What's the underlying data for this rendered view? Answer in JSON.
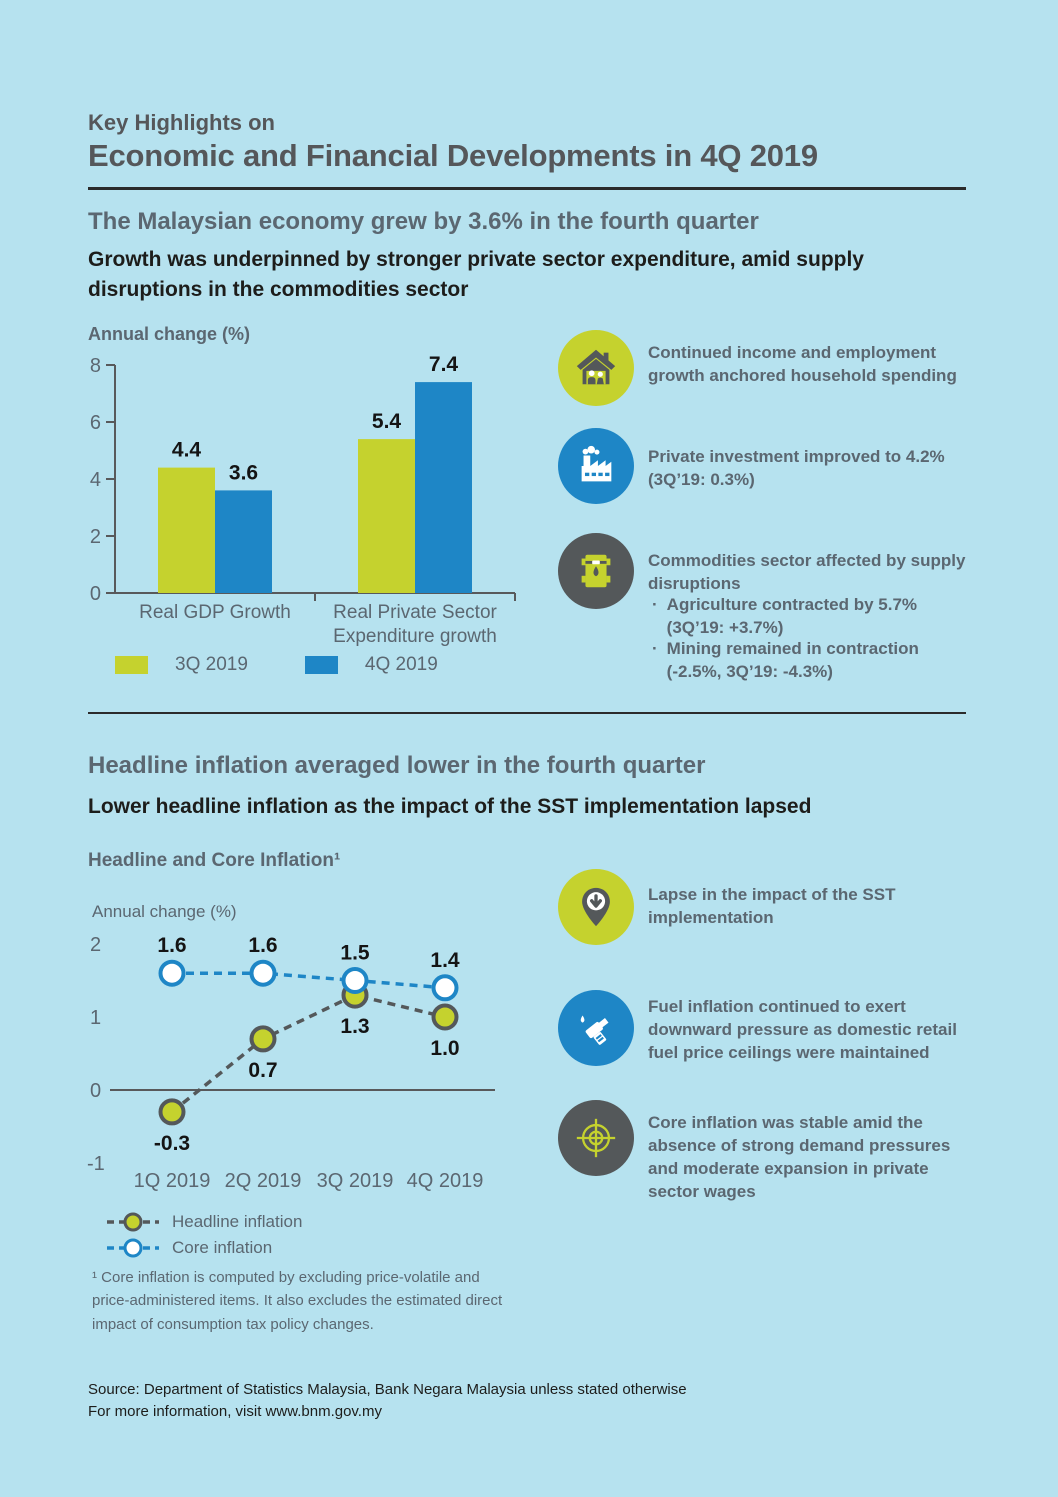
{
  "colors": {
    "background": "#b6e2ef",
    "title_gray": "#55575a",
    "heading_gray": "#5b6771",
    "text_black": "#1d1d1b",
    "green": "#c5d22e",
    "blue": "#1e86c6",
    "dark_gray": "#54585a",
    "axis_gray": "#58595b",
    "divider": "#2b2b2b"
  },
  "header": {
    "kicker": "Key Highlights on",
    "title": "Economic and Financial Developments in 4Q 2019"
  },
  "section1": {
    "heading": "The Malaysian economy grew by 3.6% in the fourth quarter",
    "subheading": "Growth was underpinned by stronger private sector expenditure, amid supply\ndisruptions in the commodities sector",
    "chart_title": "Annual change (%)",
    "legend": [
      "3Q 2019",
      "4Q 2019"
    ],
    "highlights": [
      {
        "icon": "household-icon",
        "text": "Continued income and employment\ngrowth anchored household spending"
      },
      {
        "icon": "factory-icon",
        "text": "Private investment improved to 4.2%\n(3Q’19: 0.3%)"
      },
      {
        "icon": "oil-barrel-icon",
        "text": "Commodities sector affected by supply\ndisruptions",
        "bullets": [
          "Agriculture contracted by 5.7%\n(3Q’19: +3.7%)",
          "Mining remained in contraction\n(-2.5%, 3Q’19: -4.3%)"
        ]
      }
    ]
  },
  "section2": {
    "heading": "Headline inflation averaged lower in the fourth quarter",
    "subheading": "Lower headline inflation as the impact of the SST implementation lapsed",
    "chart_heading": "Headline and Core Inflation¹",
    "chart_axis_label": "Annual change (%)",
    "legend": [
      "Headline inflation",
      "Core inflation"
    ],
    "highlights": [
      {
        "icon": "pin-down-arrow-icon",
        "text": "Lapse in the impact of the SST\nimplementation"
      },
      {
        "icon": "fuel-nozzle-icon",
        "text": "Fuel inflation continued to exert\ndownward pressure as domestic retail\nfuel price ceilings were maintained"
      },
      {
        "icon": "target-icon",
        "text": "Core inflation was stable amid the\nabsence of strong demand pressures\nand moderate expansion in private\nsector wages"
      }
    ]
  },
  "chart_data": [
    {
      "type": "bar",
      "title": "Annual change (%)",
      "categories": [
        "Real GDP Growth",
        "Real Private Sector\nExpenditure growth"
      ],
      "series": [
        {
          "name": "3Q 2019",
          "color": "#c5d22e",
          "values": [
            4.4,
            5.4
          ]
        },
        {
          "name": "4Q 2019",
          "color": "#1e86c6",
          "values": [
            3.6,
            7.4
          ]
        }
      ],
      "ylim": [
        0,
        8
      ],
      "yticks": [
        8,
        6,
        4,
        2,
        0
      ],
      "grid": false,
      "legend_position": "bottom"
    },
    {
      "type": "line",
      "title": "Headline and Core Inflation¹",
      "ylabel": "Annual change (%)",
      "x": [
        "1Q 2019",
        "2Q 2019",
        "3Q 2019",
        "4Q 2019"
      ],
      "series": [
        {
          "name": "Headline inflation",
          "marker_fill": "#c5d22e",
          "stroke": "#54585a",
          "values": [
            -0.3,
            0.7,
            1.3,
            1.0
          ],
          "label_pos": "below"
        },
        {
          "name": "Core inflation",
          "marker_fill": "#ffffff",
          "stroke": "#1e86c6",
          "values": [
            1.6,
            1.6,
            1.5,
            1.4
          ],
          "label_pos": "above"
        }
      ],
      "ylim": [
        -1,
        2
      ],
      "yticks": [
        2,
        1,
        0,
        -1
      ],
      "grid": false,
      "legend_position": "bottom"
    }
  ],
  "footnote": "¹ Core inflation is computed by excluding price-volatile and\nprice-administered items. It also excludes the estimated direct\nimpact of consumption tax policy changes.",
  "footer": "Source: Department of Statistics Malaysia, Bank Negara Malaysia unless stated otherwise\nFor more information, visit www.bnm.gov.my",
  "ui": {
    "bullet": "·"
  }
}
